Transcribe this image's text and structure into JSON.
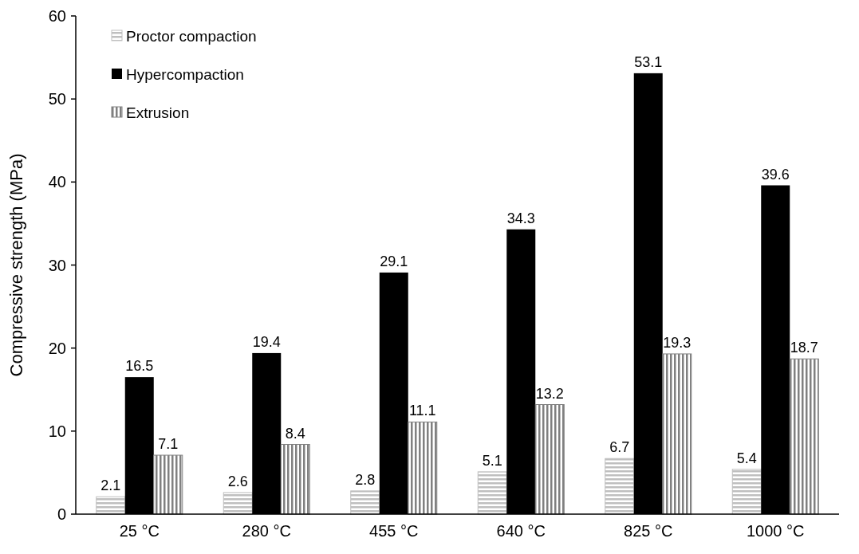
{
  "chart_data": {
    "type": "bar",
    "ylabel": "Compressive strength (MPa)",
    "categories": [
      "25 °C",
      "280 °C",
      "455 °C",
      "640 °C",
      "825 °C",
      "1000 °C"
    ],
    "series": [
      {
        "name": "Proctor compaction",
        "color": "#bfbfbf",
        "values": [
          2.1,
          2.6,
          2.8,
          5.1,
          6.7,
          5.4
        ]
      },
      {
        "name": "Hypercompaction",
        "color": "#000000",
        "values": [
          16.5,
          19.4,
          29.1,
          34.3,
          53.1,
          39.6
        ]
      },
      {
        "name": "Extrusion",
        "color": "#808080",
        "values": [
          7.1,
          8.4,
          11.1,
          13.2,
          19.3,
          18.7
        ]
      }
    ],
    "ylim": [
      0,
      60
    ],
    "yticks": [
      0,
      10,
      20,
      30,
      40,
      50,
      60
    ],
    "grid": false,
    "legend": "top left",
    "data_labels": true
  }
}
